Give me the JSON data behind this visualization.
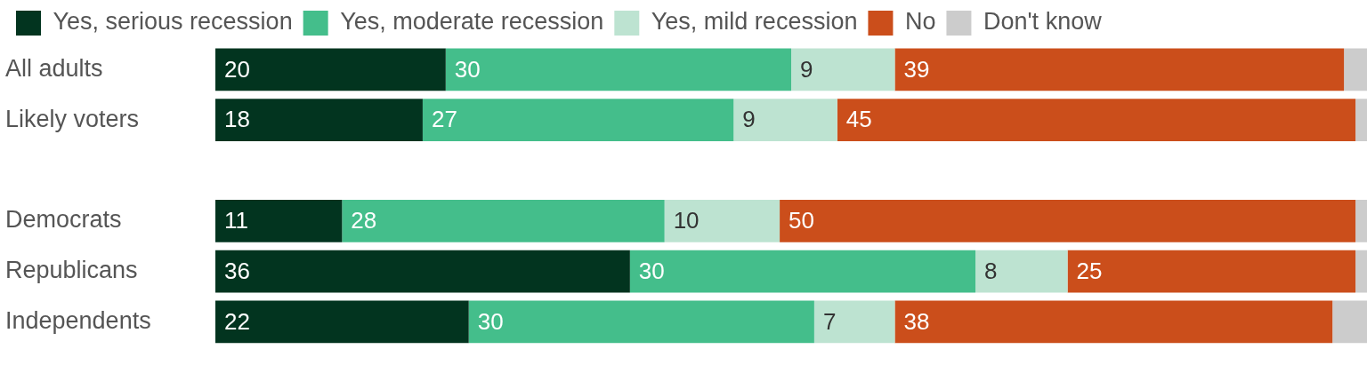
{
  "chart_data": {
    "type": "bar",
    "orientation": "horizontal",
    "stacked": true,
    "legend": "top",
    "tick_labels": "y",
    "xlim": [
      0,
      100
    ],
    "categories": [
      "All adults",
      "Likely voters",
      null,
      "Democrats",
      "Republicans",
      "Independents"
    ],
    "series": [
      {
        "name": "Yes, serious recession",
        "color": "#02341f",
        "values": [
          20,
          18,
          null,
          11,
          36,
          22
        ],
        "value_labels": [
          "20",
          "18",
          null,
          "11",
          "36",
          "22"
        ]
      },
      {
        "name": "Yes, moderate recession",
        "color": "#44be8b",
        "values": [
          30,
          27,
          null,
          28,
          30,
          30
        ],
        "value_labels": [
          "30",
          "27",
          null,
          "28",
          "30",
          "30"
        ]
      },
      {
        "name": "Yes, mild recession",
        "color": "#bde3d1",
        "values": [
          9,
          9,
          null,
          10,
          8,
          7
        ],
        "value_labels": [
          "9",
          "9",
          null,
          "10",
          "8",
          "7"
        ]
      },
      {
        "name": "No",
        "color": "#cb4e1b",
        "values": [
          39,
          45,
          null,
          50,
          25,
          38
        ],
        "value_labels": [
          "39",
          "45",
          null,
          "50",
          "25",
          "38"
        ]
      },
      {
        "name": "Don't know",
        "color": "#cccccc",
        "values": [
          2,
          1,
          null,
          1,
          1,
          3
        ],
        "value_labels": [
          null,
          null,
          null,
          null,
          null,
          null
        ]
      }
    ]
  }
}
